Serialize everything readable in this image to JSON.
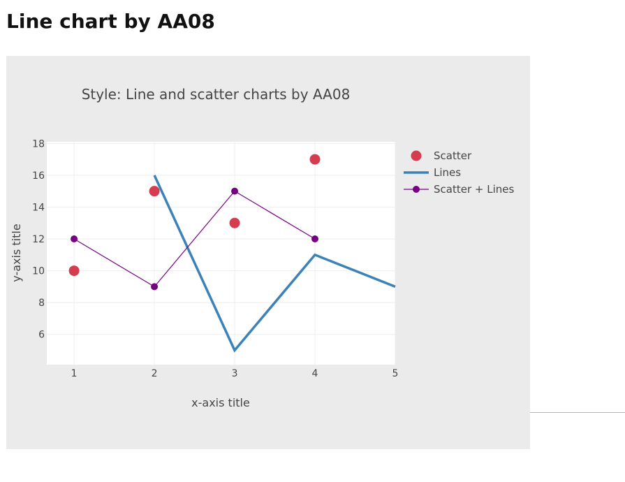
{
  "page": {
    "heading": "Line chart by AA08"
  },
  "chart_data": {
    "type": "line",
    "title": "Style: Line and scatter charts by AA08",
    "xlabel": "x-axis title",
    "ylabel": "y-axis title",
    "xlim": [
      0.66,
      5
    ],
    "ylim": [
      4.1,
      18.1
    ],
    "x_ticks": [
      1,
      2,
      3,
      4,
      5
    ],
    "y_ticks": [
      6,
      8,
      10,
      12,
      14,
      16,
      18
    ],
    "grid": true,
    "legend_position": "right",
    "colors": {
      "panel": "#ebebeb",
      "plot": "#ffffff",
      "grid": "#eeeeee"
    },
    "series": [
      {
        "name": "Scatter",
        "mode": "markers",
        "color": "#d63c4f",
        "x": [
          1,
          2,
          3,
          4
        ],
        "y": [
          10,
          15,
          13,
          17
        ]
      },
      {
        "name": "Lines",
        "mode": "lines",
        "color": "#3a82b8",
        "x": [
          2,
          3,
          4,
          5
        ],
        "y": [
          16,
          5,
          11,
          9
        ]
      },
      {
        "name": "Scatter + Lines",
        "mode": "lines+markers",
        "color": "#760082",
        "x": [
          1,
          2,
          3,
          4
        ],
        "y": [
          12,
          9,
          15,
          12
        ]
      }
    ]
  }
}
